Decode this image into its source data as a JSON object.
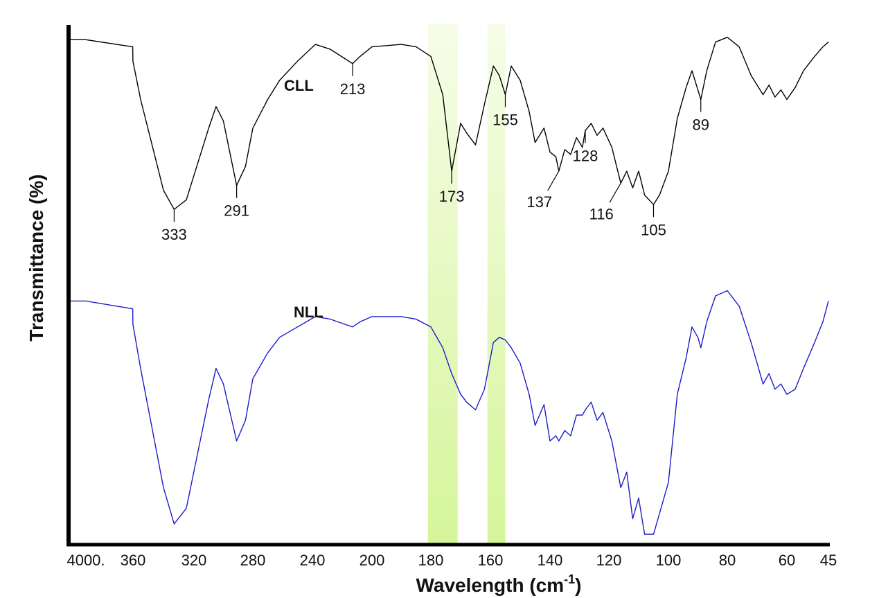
{
  "chart_data": {
    "type": "line",
    "title": "",
    "xlabel": "Wavelength (cm",
    "xlabel_sup": "-1",
    "xlabel_close": ")",
    "ylabel": "Transmittance (%)",
    "x_tick_labels": [
      "4000.",
      "360",
      "320",
      "280",
      "240",
      "200",
      "180",
      "160",
      "140",
      "120",
      "100",
      "80",
      "60",
      "45"
    ],
    "x_reversed": true,
    "grid": false,
    "legend": "none",
    "highlight_bands": [
      {
        "from": 181,
        "to": 171,
        "color": "#d8f5a0"
      },
      {
        "from": 161,
        "to": 155,
        "color": "#d8f5a0"
      }
    ],
    "series": [
      {
        "name": "CLL",
        "color": "#000000",
        "x": [
          4000,
          380,
          365,
          355,
          340,
          333,
          325,
          310,
          305,
          300,
          291,
          285,
          280,
          270,
          262,
          250,
          238,
          228,
          218,
          213,
          208,
          200,
          190,
          185,
          180,
          176,
          173,
          170,
          168,
          165,
          162,
          159,
          157,
          155,
          153,
          150,
          147,
          145,
          142,
          140,
          138,
          137,
          135,
          133,
          131,
          129,
          128,
          126,
          124,
          122,
          119,
          116,
          114,
          112,
          110,
          108,
          105,
          103,
          100,
          97,
          94,
          92,
          90,
          89,
          87,
          84,
          80,
          76,
          72,
          68,
          66,
          64,
          62,
          60,
          57,
          54,
          50,
          47,
          45
        ],
        "y": [
          95,
          92,
          86,
          70,
          32,
          24,
          28,
          58,
          67,
          61,
          34,
          42,
          58,
          70,
          78,
          86,
          93,
          91,
          87,
          85,
          88,
          92,
          93,
          92,
          88,
          72,
          40,
          60,
          56,
          51,
          68,
          84,
          80,
          72,
          84,
          78,
          65,
          52,
          58,
          48,
          46,
          40,
          49,
          47,
          54,
          50,
          57,
          60,
          55,
          58,
          50,
          35,
          40,
          33,
          40,
          30,
          26,
          30,
          40,
          62,
          75,
          82,
          74,
          70,
          82,
          94,
          96,
          92,
          80,
          72,
          76,
          71,
          74,
          70,
          75,
          82,
          88,
          92,
          94
        ]
      },
      {
        "name": "NLL",
        "color": "#1a1acc",
        "x": [
          4000,
          380,
          365,
          355,
          340,
          333,
          325,
          310,
          305,
          300,
          291,
          285,
          280,
          270,
          262,
          250,
          238,
          228,
          218,
          213,
          208,
          200,
          190,
          185,
          180,
          176,
          173,
          170,
          168,
          165,
          162,
          159,
          157,
          155,
          153,
          150,
          147,
          145,
          142,
          140,
          138,
          137,
          135,
          133,
          131,
          129,
          128,
          126,
          124,
          122,
          119,
          116,
          114,
          112,
          110,
          108,
          105,
          103,
          100,
          97,
          94,
          92,
          90,
          89,
          87,
          84,
          80,
          76,
          72,
          68,
          66,
          64,
          62,
          60,
          57,
          54,
          50,
          47,
          45
        ],
        "y": [
          94,
          91,
          85,
          68,
          22,
          8,
          14,
          56,
          68,
          62,
          40,
          48,
          64,
          74,
          80,
          84,
          88,
          87,
          85,
          84,
          86,
          88,
          88,
          87,
          84,
          76,
          66,
          58,
          55,
          52,
          60,
          78,
          80,
          79,
          76,
          70,
          58,
          46,
          54,
          40,
          42,
          40,
          44,
          42,
          50,
          50,
          52,
          55,
          48,
          51,
          40,
          22,
          28,
          10,
          18,
          4,
          4,
          12,
          24,
          58,
          72,
          84,
          80,
          76,
          86,
          96,
          98,
          92,
          78,
          62,
          66,
          60,
          62,
          58,
          60,
          68,
          78,
          86,
          94
        ]
      }
    ],
    "annotations": [
      {
        "label": "333",
        "series": "CLL",
        "x": 333,
        "side": "below"
      },
      {
        "label": "291",
        "series": "CLL",
        "x": 291,
        "side": "below"
      },
      {
        "label": "213",
        "series": "CLL",
        "x": 213,
        "side": "below"
      },
      {
        "label": "173",
        "series": "CLL",
        "x": 173,
        "side": "below"
      },
      {
        "label": "155",
        "series": "CLL",
        "x": 155,
        "side": "below"
      },
      {
        "label": "137",
        "series": "CLL",
        "x": 137,
        "side": "below-left"
      },
      {
        "label": "128",
        "series": "CLL",
        "x": 128,
        "side": "below"
      },
      {
        "label": "116",
        "series": "CLL",
        "x": 116,
        "side": "below-left"
      },
      {
        "label": "105",
        "series": "CLL",
        "x": 105,
        "side": "below"
      },
      {
        "label": "89",
        "series": "CLL",
        "x": 89,
        "side": "below"
      }
    ]
  }
}
